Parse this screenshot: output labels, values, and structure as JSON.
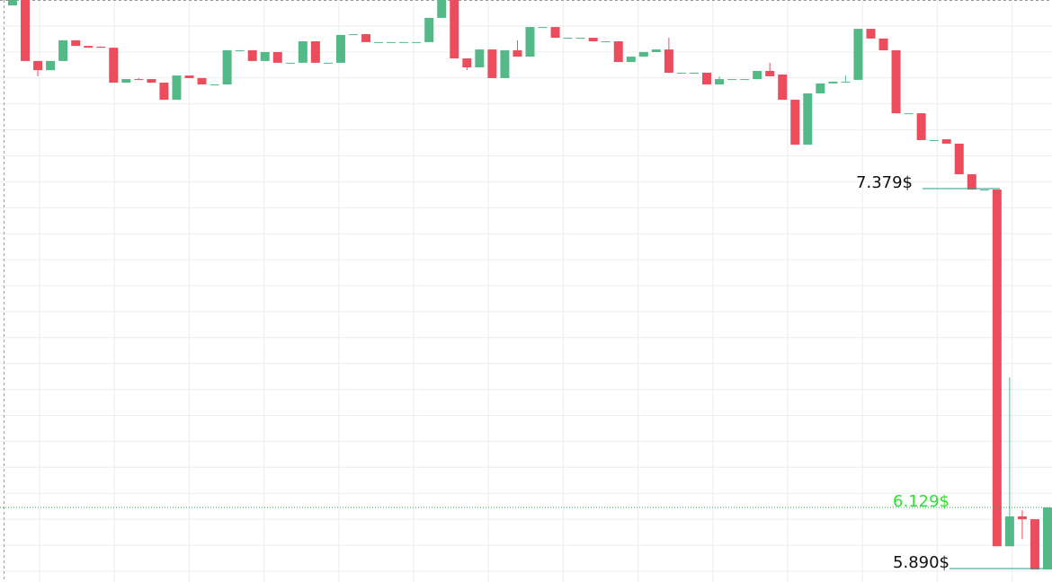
{
  "chart_data": {
    "type": "candlestick",
    "up_color": "#53b987",
    "down_color": "#eb4d5c",
    "grid": true,
    "ylim": [
      5.837,
      8.118
    ],
    "open": [
      8.097,
      8.118,
      7.879,
      7.843,
      7.879,
      7.96,
      7.938,
      7.935,
      7.931,
      7.794,
      7.808,
      7.808,
      7.794,
      7.727,
      7.822,
      7.812,
      7.787,
      7.787,
      7.921,
      7.921,
      7.879,
      7.914,
      7.872,
      7.872,
      7.956,
      7.872,
      7.872,
      7.984,
      7.984,
      7.953,
      7.953,
      7.953,
      7.953,
      7.953,
      8.048,
      8.118,
      7.889,
      7.854,
      7.924,
      7.812,
      7.921,
      7.896,
      8.012,
      8.012,
      7.97,
      7.97,
      7.97,
      7.956,
      7.956,
      7.875,
      7.896,
      7.914,
      7.924,
      7.833,
      7.833,
      7.833,
      7.787,
      7.808,
      7.808,
      7.808,
      7.84,
      7.826,
      7.727,
      7.551,
      7.752,
      7.791,
      7.798,
      7.805,
      8.005,
      7.967,
      7.921,
      7.674,
      7.674,
      7.569,
      7.572,
      7.555,
      7.435,
      7.375,
      7.375,
      5.977,
      6.094,
      6.083,
      5.886
    ],
    "high": [
      8.118,
      8.118,
      7.879,
      7.879,
      7.96,
      7.96,
      7.938,
      7.935,
      7.931,
      7.808,
      7.812,
      7.808,
      7.794,
      7.822,
      7.822,
      7.812,
      7.787,
      7.921,
      7.921,
      7.921,
      7.914,
      7.914,
      7.872,
      7.956,
      7.956,
      7.872,
      7.981,
      7.984,
      7.984,
      7.953,
      7.953,
      7.953,
      7.953,
      8.048,
      8.118,
      8.118,
      7.889,
      7.924,
      7.924,
      7.921,
      7.96,
      8.012,
      8.012,
      8.012,
      7.97,
      7.97,
      7.97,
      7.956,
      7.956,
      7.896,
      7.914,
      7.924,
      7.97,
      7.833,
      7.833,
      7.833,
      7.819,
      7.808,
      7.808,
      7.84,
      7.872,
      7.826,
      7.727,
      7.752,
      7.791,
      7.798,
      7.822,
      8.005,
      8.005,
      7.967,
      7.921,
      7.674,
      7.674,
      7.569,
      7.572,
      7.555,
      7.435,
      7.375,
      7.375,
      6.639,
      6.118,
      6.083,
      6.129
    ],
    "low": [
      8.097,
      7.879,
      7.819,
      7.843,
      7.879,
      7.938,
      7.931,
      7.931,
      7.794,
      7.794,
      7.805,
      7.794,
      7.727,
      7.727,
      7.812,
      7.787,
      7.787,
      7.787,
      7.921,
      7.879,
      7.879,
      7.872,
      7.872,
      7.872,
      7.872,
      7.872,
      7.872,
      7.984,
      7.953,
      7.953,
      7.953,
      7.953,
      7.953,
      7.953,
      8.048,
      7.889,
      7.843,
      7.854,
      7.812,
      7.812,
      7.896,
      7.896,
      8.012,
      7.97,
      7.97,
      7.97,
      7.956,
      7.956,
      7.875,
      7.875,
      7.896,
      7.914,
      7.833,
      7.833,
      7.833,
      7.787,
      7.787,
      7.808,
      7.808,
      7.808,
      7.819,
      7.727,
      7.551,
      7.551,
      7.752,
      7.791,
      7.798,
      7.805,
      7.967,
      7.921,
      7.674,
      7.674,
      7.569,
      7.569,
      7.555,
      7.435,
      7.375,
      7.375,
      5.977,
      5.977,
      6.005,
      5.886,
      5.886
    ],
    "close": [
      8.118,
      7.879,
      7.843,
      7.879,
      7.96,
      7.938,
      7.931,
      7.931,
      7.794,
      7.808,
      7.805,
      7.794,
      7.727,
      7.822,
      7.812,
      7.787,
      7.787,
      7.921,
      7.921,
      7.879,
      7.914,
      7.872,
      7.872,
      7.956,
      7.872,
      7.872,
      7.981,
      7.984,
      7.953,
      7.953,
      7.953,
      7.953,
      7.953,
      8.048,
      8.118,
      7.889,
      7.854,
      7.924,
      7.812,
      7.921,
      7.896,
      8.012,
      8.012,
      7.97,
      7.97,
      7.97,
      7.956,
      7.956,
      7.875,
      7.896,
      7.914,
      7.924,
      7.833,
      7.833,
      7.833,
      7.787,
      7.808,
      7.808,
      7.808,
      7.84,
      7.819,
      7.727,
      7.551,
      7.752,
      7.791,
      7.798,
      7.798,
      8.005,
      7.967,
      7.921,
      7.674,
      7.674,
      7.569,
      7.569,
      7.555,
      7.435,
      7.375,
      7.375,
      5.977,
      6.094,
      6.083,
      5.886,
      6.129
    ],
    "annotations": [
      {
        "value": 7.379,
        "label": "7.379$",
        "color": "#111111"
      },
      {
        "value": 6.129,
        "label": "6.129$",
        "color": "#2ee02e"
      },
      {
        "value": 5.89,
        "label": "5.890$",
        "color": "#111111"
      }
    ]
  }
}
